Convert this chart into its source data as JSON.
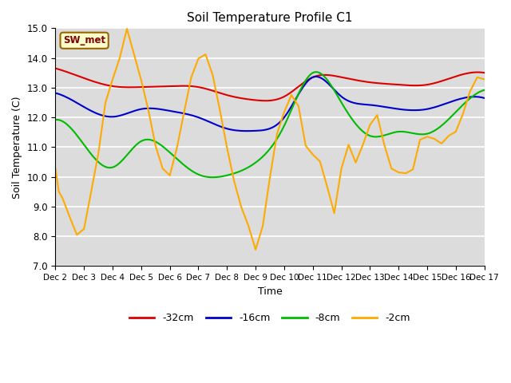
{
  "title": "Soil Temperature Profile C1",
  "xlabel": "Time",
  "ylabel": "Soil Temperature (C)",
  "ylim": [
    7.0,
    15.0
  ],
  "yticks": [
    7.0,
    8.0,
    9.0,
    10.0,
    11.0,
    12.0,
    13.0,
    14.0,
    15.0
  ],
  "background_color": "#dcdcdc",
  "site_label": "SW_met",
  "legend_labels": [
    "-32cm",
    "-16cm",
    "-8cm",
    "-2cm"
  ],
  "legend_colors": [
    "#dd0000",
    "#0000cc",
    "#00bb00",
    "#ffaa00"
  ],
  "x_tick_labels": [
    "Dec 2",
    "Dec 3",
    "Dec 4",
    "Dec 5",
    "Dec 6",
    "Dec 7",
    "Dec 8",
    "Dec 9",
    "Dec 10",
    "Dec 11",
    "Dec 12",
    "Dec 13",
    "Dec 14",
    "Dec 15",
    "Dec 16",
    "Dec 17"
  ],
  "series_32cm_x": [
    0,
    1,
    2,
    3,
    4,
    5,
    6,
    7,
    8,
    9,
    10,
    11,
    12,
    13,
    14,
    15
  ],
  "series_32cm_y": [
    13.65,
    13.32,
    13.05,
    13.02,
    13.05,
    13.02,
    12.75,
    12.58,
    12.7,
    13.35,
    13.35,
    13.18,
    13.1,
    13.1,
    13.38,
    13.5
  ],
  "series_16cm_x": [
    0,
    1,
    2,
    3,
    4,
    5,
    6,
    7,
    8,
    9,
    10,
    11,
    12,
    13,
    14,
    15
  ],
  "series_16cm_y": [
    12.82,
    12.35,
    12.02,
    12.28,
    12.22,
    12.0,
    11.62,
    11.55,
    12.0,
    13.35,
    12.7,
    12.42,
    12.28,
    12.28,
    12.58,
    12.65
  ],
  "series_8cm_x": [
    0,
    1,
    2,
    3,
    4,
    5,
    6,
    7,
    8,
    9,
    10,
    11,
    12,
    13,
    14,
    15
  ],
  "series_8cm_y": [
    11.92,
    11.08,
    10.32,
    11.2,
    10.82,
    10.08,
    10.05,
    10.48,
    11.72,
    13.5,
    12.5,
    11.38,
    11.52,
    11.45,
    12.18,
    12.92
  ],
  "series_2cm_x": [
    0,
    0.12,
    0.25,
    0.5,
    0.75,
    1.0,
    1.25,
    1.5,
    1.75,
    2.0,
    2.25,
    2.5,
    2.75,
    3.0,
    3.25,
    3.5,
    3.75,
    4.0,
    4.25,
    4.5,
    4.75,
    5.0,
    5.25,
    5.5,
    5.75,
    6.0,
    6.25,
    6.5,
    6.75,
    7.0,
    7.25,
    7.5,
    7.75,
    8.0,
    8.25,
    8.5,
    8.75,
    9.0,
    9.25,
    9.5,
    9.75,
    10.0,
    10.25,
    10.5,
    10.75,
    11.0,
    11.25,
    11.5,
    11.75,
    12.0,
    12.25,
    12.5,
    12.75,
    13.0,
    13.25,
    13.5,
    13.75,
    14.0,
    14.25,
    14.5,
    14.75,
    15.0
  ],
  "series_2cm_y": [
    10.28,
    9.5,
    9.28,
    8.65,
    8.05,
    8.25,
    9.5,
    10.78,
    12.5,
    13.28,
    14.0,
    14.98,
    14.12,
    13.25,
    12.25,
    11.05,
    10.28,
    10.05,
    10.98,
    12.18,
    13.35,
    13.98,
    14.12,
    13.42,
    12.25,
    10.98,
    9.85,
    8.98,
    8.35,
    7.55,
    8.35,
    9.98,
    11.45,
    12.18,
    12.75,
    12.38,
    11.05,
    10.75,
    10.52,
    9.68,
    8.78,
    10.28,
    11.08,
    10.48,
    11.08,
    11.75,
    12.08,
    11.08,
    10.28,
    10.15,
    10.12,
    10.25,
    11.25,
    11.35,
    11.28,
    11.12,
    11.38,
    11.52,
    12.12,
    12.88,
    13.35,
    13.28
  ]
}
